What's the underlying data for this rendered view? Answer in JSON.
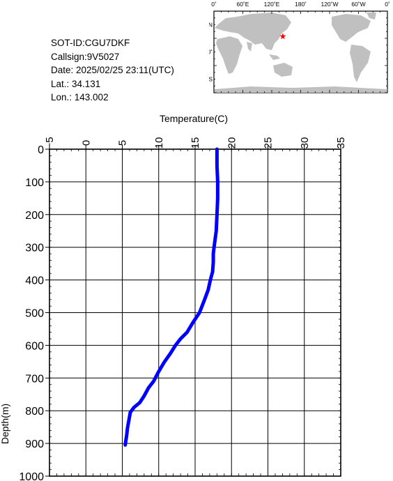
{
  "info": {
    "sot_id": "SOT-ID:CGU7DKF",
    "callsign": "Callsign:9V5027",
    "date": "Date:  2025/02/25 23:11(UTC)",
    "lat": "Lat.:  34.131",
    "lon": "Lon.:  143.002"
  },
  "map": {
    "top_labels": [
      "0˚",
      "60˚E",
      "120˚E",
      "180˚",
      "120˚W",
      "60˚W",
      "0˚"
    ],
    "left_labels": [
      "60˚N",
      "0˚",
      "60˚S"
    ],
    "position": {
      "lat": 34.131,
      "lon": 143.002
    },
    "land_color": "#c0c0c0",
    "ocean_color": "#ffffff",
    "marker_color": "#ff0000"
  },
  "chart_data": {
    "type": "line",
    "title": "",
    "xlabel": "Temperature(C)",
    "ylabel": "Depth(m)",
    "xlim": [
      -5,
      35
    ],
    "ylim": [
      1000,
      0
    ],
    "x_ticks": [
      "−5",
      "0",
      "5",
      "10",
      "15",
      "20",
      "25",
      "30",
      "35"
    ],
    "y_ticks": [
      "0",
      "100",
      "200",
      "300",
      "400",
      "500",
      "600",
      "700",
      "800",
      "900",
      "1000"
    ],
    "grid": true,
    "line_color": "#0000ff",
    "series": [
      {
        "x": [
          18.0,
          18.0,
          18.1,
          18.1,
          18.0,
          17.9,
          17.6,
          17.5,
          17.5,
          17.4,
          17.1,
          16.8,
          16.3,
          15.6,
          14.7,
          13.9,
          13.0,
          12.3,
          11.6,
          10.8,
          10.0,
          9.3,
          8.6,
          8.0,
          7.4,
          6.6,
          6.1,
          5.9,
          5.7,
          5.6,
          5.5,
          5.4
        ],
        "y": [
          0,
          50,
          100,
          150,
          200,
          250,
          300,
          320,
          345,
          375,
          400,
          430,
          460,
          500,
          530,
          560,
          580,
          600,
          625,
          650,
          680,
          710,
          730,
          755,
          775,
          790,
          805,
          830,
          855,
          875,
          890,
          905
        ]
      }
    ]
  }
}
